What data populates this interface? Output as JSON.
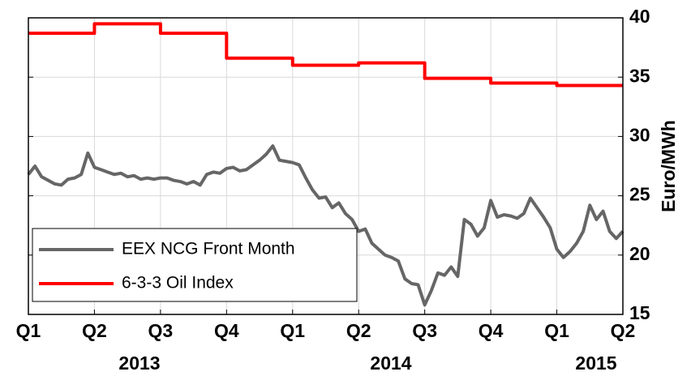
{
  "chart_data": {
    "type": "line",
    "y_label": "Euro/MWh",
    "xlim": [
      0,
      9
    ],
    "xticks": [
      {
        "value": 0,
        "label": "Q1"
      },
      {
        "value": 1,
        "label": "Q2"
      },
      {
        "value": 2,
        "label": "Q3"
      },
      {
        "value": 3,
        "label": "Q4"
      },
      {
        "value": 4,
        "label": "Q1"
      },
      {
        "value": 5,
        "label": "Q2"
      },
      {
        "value": 6,
        "label": "Q3"
      },
      {
        "value": 7,
        "label": "Q4"
      },
      {
        "value": 8,
        "label": "Q1"
      },
      {
        "value": 9,
        "label": "Q2"
      }
    ],
    "year_labels": [
      "2013",
      "2014",
      "2015"
    ],
    "ylim": [
      15,
      40
    ],
    "yticks": [
      15,
      20,
      25,
      30,
      35,
      40
    ],
    "y_axis_side": "right",
    "grid": true,
    "legend": "lower left",
    "series": [
      {
        "name": "EEX NCG Front Month",
        "color": "#666666",
        "x": [
          0,
          0.1,
          0.2,
          0.3,
          0.4,
          0.5,
          0.6,
          0.7,
          0.8,
          0.9,
          1,
          1.1,
          1.2,
          1.3,
          1.4,
          1.5,
          1.6,
          1.7,
          1.8,
          1.9,
          2,
          2.1,
          2.2,
          2.3,
          2.4,
          2.5,
          2.6,
          2.7,
          2.8,
          2.9,
          3,
          3.1,
          3.2,
          3.3,
          3.4,
          3.5,
          3.6,
          3.7,
          3.8,
          3.9,
          4,
          4.1,
          4.2,
          4.3,
          4.4,
          4.5,
          4.6,
          4.7,
          4.8,
          4.9,
          5,
          5.1,
          5.2,
          5.3,
          5.4,
          5.5,
          5.6,
          5.7,
          5.8,
          5.9,
          6,
          6.1,
          6.2,
          6.3,
          6.4,
          6.5,
          6.6,
          6.7,
          6.8,
          6.9,
          7,
          7.1,
          7.2,
          7.3,
          7.4,
          7.5,
          7.6,
          7.7,
          7.8,
          7.9,
          8,
          8.1,
          8.2,
          8.3,
          8.4,
          8.5,
          8.6,
          8.7,
          8.8,
          8.9,
          9
        ],
        "values": [
          26.8,
          27.5,
          26.6,
          26.3,
          26.0,
          25.9,
          26.4,
          26.5,
          26.8,
          28.6,
          27.4,
          27.2,
          27.0,
          26.8,
          26.9,
          26.6,
          26.7,
          26.4,
          26.5,
          26.4,
          26.5,
          26.5,
          26.3,
          26.2,
          26.0,
          26.2,
          25.9,
          26.8,
          27.0,
          26.9,
          27.3,
          27.4,
          27.1,
          27.2,
          27.6,
          28.0,
          28.5,
          29.2,
          28.0,
          27.9,
          27.8,
          27.6,
          26.5,
          25.5,
          24.8,
          24.9,
          24.0,
          24.4,
          23.5,
          23.0,
          22.0,
          22.2,
          21.0,
          20.5,
          20.0,
          19.8,
          19.5,
          18.0,
          17.6,
          17.5,
          15.8,
          17.0,
          18.5,
          18.3,
          19.0,
          18.2,
          23.0,
          22.6,
          21.6,
          22.3,
          24.6,
          23.2,
          23.4,
          23.3,
          23.1,
          23.5,
          24.8,
          24.0,
          23.2,
          22.3,
          20.5,
          19.8,
          20.3,
          21.0,
          22.0,
          24.2,
          23.0,
          23.7,
          22.0,
          21.4,
          22.0
        ]
      },
      {
        "name": "6-3-3 Oil Index",
        "color": "#ff0000",
        "step": "post",
        "x": [
          0,
          1,
          2,
          3,
          4,
          5,
          6,
          7,
          8
        ],
        "values": [
          38.7,
          39.5,
          38.7,
          36.6,
          36.0,
          36.2,
          34.9,
          34.5,
          34.3
        ]
      }
    ]
  }
}
